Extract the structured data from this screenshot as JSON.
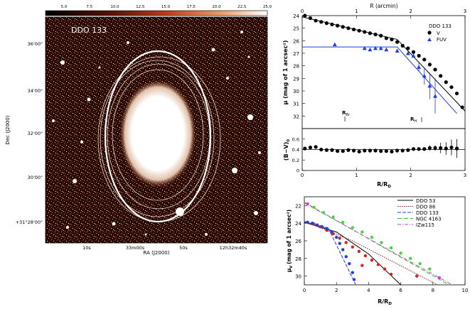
{
  "left_panel": {
    "object_label": "DDO 133",
    "colorbar_ticks": [
      "5.0",
      "7.5",
      "10.0",
      "12.5",
      "15.0",
      "17.5",
      "20.0",
      "22.5",
      "25.0"
    ],
    "dec_ticks": [
      "36'00\"",
      "34'00\"",
      "32'00\"",
      "30'00\"",
      "+31°28'00\""
    ],
    "ra_ticks": [
      "10s",
      "33m00s",
      "50s",
      "12h32m40s"
    ],
    "ylabel": "Dec (J2000)",
    "xlabel": "RA (J2000)"
  },
  "chart_data": [
    {
      "type": "scatter",
      "top_xlabel": "R (arcmin)",
      "top_xticks": [
        "0",
        "1",
        "2",
        "3"
      ],
      "xlim": [
        0,
        3
      ],
      "ylim": [
        24,
        33
      ],
      "yticks": [
        "24",
        "25",
        "26",
        "27",
        "28",
        "29",
        "30",
        "31",
        "32"
      ],
      "ylabel": "μ (mag of 1 arcsec²)",
      "annotation_Rbr": "R",
      "annotation_Rbr_sub": "Br",
      "annotation_RH": "R",
      "annotation_RH_sub": "H",
      "legend_title": "DDO 133",
      "legend_position": "top-right",
      "series": [
        {
          "name": "V",
          "color": "#000000",
          "x": [
            0.05,
            0.15,
            0.25,
            0.35,
            0.45,
            0.55,
            0.65,
            0.75,
            0.85,
            0.95,
            1.05,
            1.15,
            1.25,
            1.35,
            1.45,
            1.55,
            1.65,
            1.75,
            1.85,
            1.95,
            2.05,
            2.15,
            2.25,
            2.35,
            2.45,
            2.55,
            2.65,
            2.75,
            2.85,
            2.95
          ],
          "y": [
            24.0,
            24.2,
            24.4,
            24.5,
            24.6,
            24.7,
            24.8,
            24.9,
            25.0,
            25.1,
            25.2,
            25.3,
            25.4,
            25.5,
            25.6,
            25.8,
            25.9,
            26.1,
            26.4,
            26.6,
            26.9,
            27.2,
            27.5,
            27.9,
            28.3,
            28.8,
            29.3,
            29.7,
            30.2,
            31.3
          ]
        },
        {
          "name": "FUV",
          "color": "#1f3fd6",
          "x": [
            0.6,
            1.15,
            1.25,
            1.35,
            1.45,
            1.55,
            1.75,
            1.95,
            2.05,
            2.15,
            2.25,
            2.35,
            2.45
          ],
          "y": [
            26.3,
            26.6,
            26.7,
            26.6,
            26.6,
            26.7,
            26.8,
            27.0,
            27.2,
            28.1,
            28.8,
            29.6,
            30.4
          ]
        }
      ],
      "fits": [
        {
          "name": "V",
          "x": [
            0,
            1.75,
            3.0
          ],
          "y": [
            24.1,
            25.9,
            31.6
          ]
        },
        {
          "name": "FUV",
          "x": [
            0,
            1.75,
            2.85
          ],
          "y": [
            26.5,
            26.5,
            31.8
          ]
        }
      ]
    },
    {
      "type": "scatter",
      "xlabel": "R/R",
      "xlabel_sub": "D",
      "ylabel": "(B−V)",
      "ylabel_sub": "0",
      "xlim": [
        0,
        3
      ],
      "ylim": [
        0,
        0.8
      ],
      "xticks": [
        "0",
        "1",
        "2",
        "3"
      ],
      "yticks": [
        "0",
        "0.2",
        "0.4",
        "0.6"
      ],
      "x": [
        0.05,
        0.15,
        0.25,
        0.35,
        0.45,
        0.55,
        0.65,
        0.75,
        0.85,
        0.95,
        1.05,
        1.15,
        1.25,
        1.35,
        1.45,
        1.55,
        1.65,
        1.75,
        1.85,
        1.95,
        2.05,
        2.15,
        2.25,
        2.35,
        2.45,
        2.55,
        2.65,
        2.75,
        2.85
      ],
      "y": [
        0.42,
        0.44,
        0.45,
        0.4,
        0.39,
        0.39,
        0.37,
        0.37,
        0.39,
        0.38,
        0.36,
        0.38,
        0.38,
        0.38,
        0.37,
        0.37,
        0.36,
        0.38,
        0.38,
        0.39,
        0.41,
        0.41,
        0.41,
        0.43,
        0.43,
        0.43,
        0.42,
        0.44,
        0.42
      ],
      "errors": [
        0,
        0,
        0,
        0,
        0,
        0,
        0,
        0,
        0,
        0,
        0,
        0,
        0,
        0,
        0,
        0,
        0,
        0,
        0,
        0,
        0,
        0,
        0,
        0.05,
        0.05,
        0.1,
        0.12,
        0.15,
        0.18
      ],
      "hline": 0.4
    },
    {
      "type": "line",
      "xlabel": "R/R",
      "xlabel_sub": "D",
      "ylabel": "μ",
      "ylabel_sub": "V",
      "ylabel_rest": "(mag of 1 arcsec²)",
      "xlim": [
        0,
        10
      ],
      "ylim": [
        21,
        31
      ],
      "xticks": [
        "0",
        "2",
        "4",
        "6",
        "8",
        "10"
      ],
      "yticks": [
        "22",
        "24",
        "26",
        "28",
        "30"
      ],
      "legend_position": "top-right",
      "series": [
        {
          "name": "DDO 53",
          "color": "#000000",
          "line": [
            [
              0,
              23.9
            ],
            [
              2,
              25.0
            ],
            [
              4,
              27.5
            ],
            [
              6,
              31.0
            ]
          ],
          "points": [
            [
              0.2,
              23.9
            ],
            [
              0.6,
              24.1
            ],
            [
              1.0,
              24.4
            ],
            [
              1.4,
              24.8
            ],
            [
              1.8,
              25.2
            ],
            [
              2.2,
              25.7
            ],
            [
              2.6,
              26.2
            ],
            [
              3.0,
              26.7
            ],
            [
              3.4,
              27.2
            ],
            [
              3.8,
              27.7
            ],
            [
              4.2,
              28.2
            ],
            [
              4.6,
              28.7
            ],
            [
              5.0,
              29.2
            ],
            [
              5.4,
              29.8
            ]
          ],
          "point_color": "#d8231a"
        },
        {
          "name": "DDO 86",
          "color": "#8a1a1a",
          "line": [
            [
              0,
              23.8
            ],
            [
              3,
              26.0
            ],
            [
              8.3,
              31.0
            ]
          ],
          "points": [
            [
              3.6,
              28.8
            ],
            [
              7.0,
              30.0
            ]
          ],
          "point_color": "#d8231a"
        },
        {
          "name": "DDO 133",
          "color": "#1f3fd6",
          "line": [
            [
              0,
              23.8
            ],
            [
              1.5,
              24.6
            ],
            [
              3.2,
              31.0
            ]
          ],
          "points": [
            [
              0.2,
              23.9
            ],
            [
              0.5,
              24.0
            ],
            [
              0.8,
              24.2
            ],
            [
              1.1,
              24.4
            ],
            [
              1.4,
              24.6
            ],
            [
              1.7,
              25.0
            ],
            [
              2.0,
              25.6
            ],
            [
              2.2,
              26.3
            ],
            [
              2.4,
              27.0
            ],
            [
              2.6,
              27.8
            ],
            [
              2.8,
              28.6
            ],
            [
              3.0,
              29.6
            ],
            [
              3.1,
              30.4
            ]
          ],
          "point_color": "#1f3fd6"
        },
        {
          "name": "NGC 4163",
          "color": "#2fbf2f",
          "line": [
            [
              0,
              21.6
            ],
            [
              9.0,
              31.0
            ]
          ],
          "points": [
            [
              0.6,
              22.2
            ],
            [
              1.2,
              22.8
            ],
            [
              1.8,
              23.3
            ],
            [
              2.4,
              23.9
            ],
            [
              3.0,
              24.5
            ],
            [
              3.6,
              25.0
            ],
            [
              4.2,
              25.6
            ],
            [
              4.8,
              26.2
            ],
            [
              5.4,
              26.8
            ],
            [
              6.0,
              27.4
            ],
            [
              6.6,
              28.0
            ],
            [
              7.2,
              28.6
            ],
            [
              7.8,
              29.2
            ]
          ],
          "point_color": "#46d346"
        },
        {
          "name": "IZw115",
          "color": "#c63fd0",
          "line": [
            [
              0,
              21.7
            ],
            [
              9.2,
              31.0
            ]
          ],
          "points": [
            [
              0.2,
              21.8
            ],
            [
              8.4,
              30.2
            ]
          ],
          "point_color": "#c63fd0"
        }
      ]
    }
  ]
}
